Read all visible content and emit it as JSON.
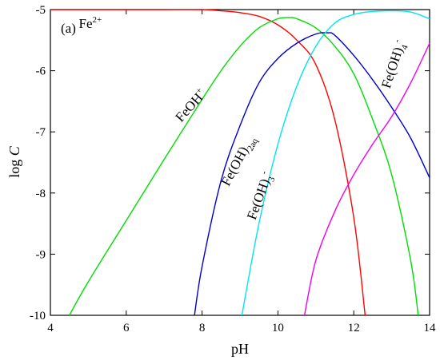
{
  "chart_data": {
    "type": "line",
    "panel_label": "(a)",
    "xlabel": "pH",
    "ylabel_main": "log ",
    "ylabel_italic": "C",
    "xlim": [
      4,
      14
    ],
    "ylim": [
      -10,
      -5
    ],
    "xticks": [
      4,
      6,
      8,
      10,
      12,
      14
    ],
    "yticks": [
      -5,
      -6,
      -7,
      -8,
      -9,
      -10
    ],
    "xtick_labels": [
      "4",
      "6",
      "8",
      "10",
      "12",
      "14"
    ],
    "ytick_labels": [
      "-5",
      "-6",
      "-7",
      "-8",
      "-9",
      "-10"
    ],
    "grid": false,
    "series": [
      {
        "color": "#ff0000",
        "points": [
          [
            4,
            -5.0
          ],
          [
            6,
            -5.0
          ],
          [
            7,
            -5.0
          ],
          [
            8,
            -5.0
          ],
          [
            8.5,
            -5.02
          ],
          [
            9,
            -5.05
          ],
          [
            9.5,
            -5.11
          ],
          [
            10,
            -5.25
          ],
          [
            10.5,
            -5.5
          ],
          [
            11,
            -5.9
          ],
          [
            11.5,
            -6.8
          ],
          [
            12,
            -8.4
          ],
          [
            12.3,
            -10.0
          ]
        ]
      },
      {
        "color": "#00dd00",
        "points": [
          [
            4.5,
            -10.0
          ],
          [
            5,
            -9.45
          ],
          [
            6,
            -8.45
          ],
          [
            7,
            -7.45
          ],
          [
            8,
            -6.47
          ],
          [
            8.5,
            -6.0
          ],
          [
            9,
            -5.6
          ],
          [
            9.5,
            -5.3
          ],
          [
            10,
            -5.15
          ],
          [
            10.3,
            -5.13
          ],
          [
            10.5,
            -5.15
          ],
          [
            11,
            -5.3
          ],
          [
            11.5,
            -5.6
          ],
          [
            12,
            -6.05
          ],
          [
            12.5,
            -6.8
          ],
          [
            13,
            -7.7
          ],
          [
            13.5,
            -9.1
          ],
          [
            13.7,
            -10.0
          ]
        ]
      },
      {
        "color": "#0000cc",
        "points": [
          [
            7.8,
            -10.0
          ],
          [
            8,
            -9.2
          ],
          [
            8.5,
            -7.8
          ],
          [
            9,
            -6.9
          ],
          [
            9.5,
            -6.2
          ],
          [
            10,
            -5.8
          ],
          [
            10.5,
            -5.55
          ],
          [
            11,
            -5.4
          ],
          [
            11.3,
            -5.38
          ],
          [
            11.5,
            -5.42
          ],
          [
            12,
            -5.75
          ],
          [
            12.5,
            -6.15
          ],
          [
            13,
            -6.6
          ],
          [
            13.5,
            -7.1
          ],
          [
            14,
            -7.75
          ]
        ]
      },
      {
        "color": "#00e5ee",
        "points": [
          [
            9.05,
            -10.0
          ],
          [
            9.5,
            -8.5
          ],
          [
            10,
            -7.2
          ],
          [
            10.5,
            -6.25
          ],
          [
            11,
            -5.6
          ],
          [
            11.5,
            -5.22
          ],
          [
            12,
            -5.08
          ],
          [
            12.5,
            -5.03
          ],
          [
            13,
            -5.02
          ],
          [
            13.5,
            -5.04
          ],
          [
            14,
            -5.15
          ]
        ]
      },
      {
        "color": "#ee00ee",
        "points": [
          [
            10.7,
            -10.0
          ],
          [
            11,
            -9.1
          ],
          [
            11.5,
            -8.3
          ],
          [
            12,
            -7.7
          ],
          [
            12.5,
            -7.2
          ],
          [
            13,
            -6.75
          ],
          [
            13.5,
            -6.2
          ],
          [
            14,
            -5.55
          ]
        ]
      }
    ],
    "annotations": [
      {
        "id": "fe2",
        "base": "Fe",
        "sup": "2+",
        "sub": "",
        "sup2": "",
        "x": 4.75,
        "y": -5.3,
        "rotate": 0
      },
      {
        "id": "feoh",
        "base": "FeOH",
        "sup": "+",
        "sub": "",
        "sup2": "",
        "x": 7.45,
        "y": -6.85,
        "rotate": -48
      },
      {
        "id": "feoh2aq",
        "base": "Fe(OH)",
        "sup": "",
        "sub": "2aq",
        "sup2": "",
        "x": 8.7,
        "y": -7.9,
        "rotate": -62
      },
      {
        "id": "feoh3",
        "base": "Fe(OH)",
        "sup": "",
        "sub": "3",
        "sup2": "-",
        "x": 9.4,
        "y": -8.45,
        "rotate": -70
      },
      {
        "id": "feoh4",
        "base": "Fe(OH)",
        "sup": "",
        "sub": "4",
        "sup2": "-",
        "x": 12.95,
        "y": -6.3,
        "rotate": -72
      }
    ]
  }
}
